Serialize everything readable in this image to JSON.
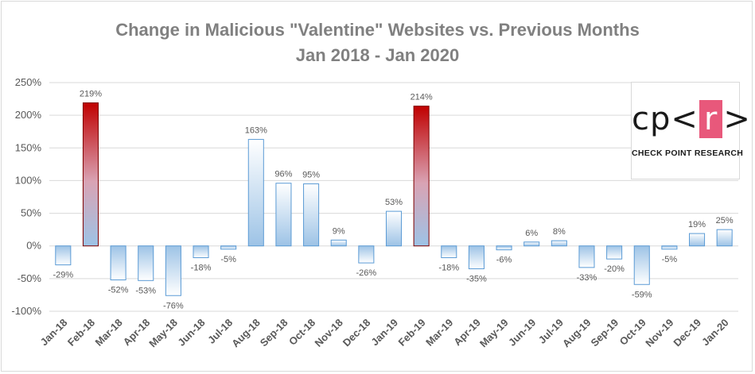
{
  "chart_data": {
    "type": "bar",
    "title": "Change in Malicious \"Valentine\" Websites vs. Previous Months",
    "subtitle": "Jan 2018 - Jan 2020",
    "xlabel": "",
    "ylabel": "",
    "ylim": [
      -100,
      250
    ],
    "yticks": [
      -100,
      -50,
      0,
      50,
      100,
      150,
      200,
      250
    ],
    "ytick_suffix": "%",
    "grid": "horizontal",
    "categories": [
      "Jan-18",
      "Feb-18",
      "Mar-18",
      "Apr-18",
      "May-18",
      "Jun-18",
      "Jul-18",
      "Aug-18",
      "Sep-18",
      "Oct-18",
      "Nov-18",
      "Dec-18",
      "Jan-19",
      "Feb-19",
      "Mar-19",
      "Apr-19",
      "May-19",
      "Jun-19",
      "Jul-19",
      "Aug-19",
      "Sep-19",
      "Oct-19",
      "Nov-19",
      "Dec-19",
      "Jan-20"
    ],
    "values": [
      -29,
      219,
      -52,
      -53,
      -76,
      -18,
      -5,
      163,
      96,
      95,
      9,
      -26,
      53,
      214,
      -18,
      -35,
      -6,
      6,
      8,
      -33,
      -20,
      -59,
      -5,
      19,
      25
    ],
    "data_labels": [
      "-29%",
      "219%",
      "-52%",
      "-53%",
      "-76%",
      "-18%",
      "-5%",
      "163%",
      "96%",
      "95%",
      "9%",
      "-26%",
      "53%",
      "214%",
      "-18%",
      "-35%",
      "-6%",
      "6%",
      "8%",
      "-33%",
      "-20%",
      "-59%",
      "-5%",
      "19%",
      "25%"
    ],
    "highlighted": [
      "Feb-18",
      "Feb-19"
    ],
    "colors": {
      "bar_fill_top": "#ffffff",
      "bar_fill_bottom": "#9dc3e6",
      "bar_border": "#5b9bd5",
      "highlight_top": "#c00000",
      "highlight_bottom": "#9dc3e6",
      "highlight_border": "#7f0000",
      "grid": "#d9d9d9"
    }
  },
  "logo": {
    "prefix": "cp<",
    "highlight": "r",
    "suffix": ">",
    "text": "CHECK POINT RESEARCH",
    "accent": "#e8587b"
  }
}
